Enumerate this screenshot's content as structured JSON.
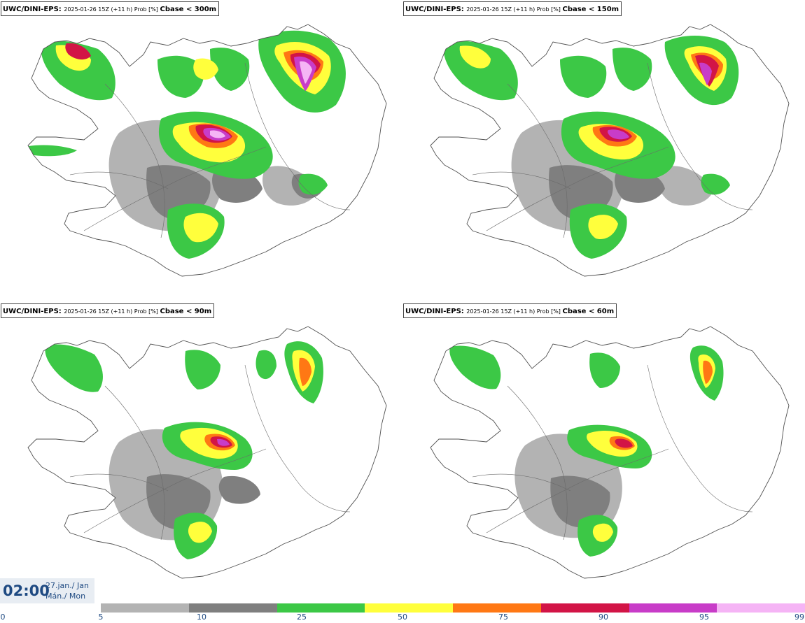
{
  "panels": [
    {
      "source": "UWC/DINI-EPS",
      "run": "2025-01-26 15Z (+11 h) Prob [%]",
      "variable": "Cbase < 300m"
    },
    {
      "source": "UWC/DINI-EPS",
      "run": "2025-01-26 15Z (+11 h) Prob [%]",
      "variable": "Cbase < 150m"
    },
    {
      "source": "UWC/DINI-EPS",
      "run": "2025-01-26 15Z (+11 h) Prob [%]",
      "variable": "Cbase < 90m"
    },
    {
      "source": "UWC/DINI-EPS",
      "run": "2025-01-26 15Z (+11 h) Prob [%]",
      "variable": "Cbase < 60m"
    }
  ],
  "valid_time": {
    "time": "02:00",
    "date_line1": "27.jan./ Jan",
    "date_line2": "Mán./ Mon"
  },
  "legend": {
    "ticks": [
      "0",
      "5",
      "10",
      "25",
      "50",
      "75",
      "90",
      "95",
      "99"
    ],
    "colors": [
      "#b3b3b3",
      "#7f7f7f",
      "#3cc846",
      "#ffff3c",
      "#ff7814",
      "#d21446",
      "#c83cc8",
      "#f5b4f5"
    ]
  },
  "colors": {
    "land_outline": "#505050",
    "water": "#ffffff",
    "text_accent": "#1f4a82"
  }
}
